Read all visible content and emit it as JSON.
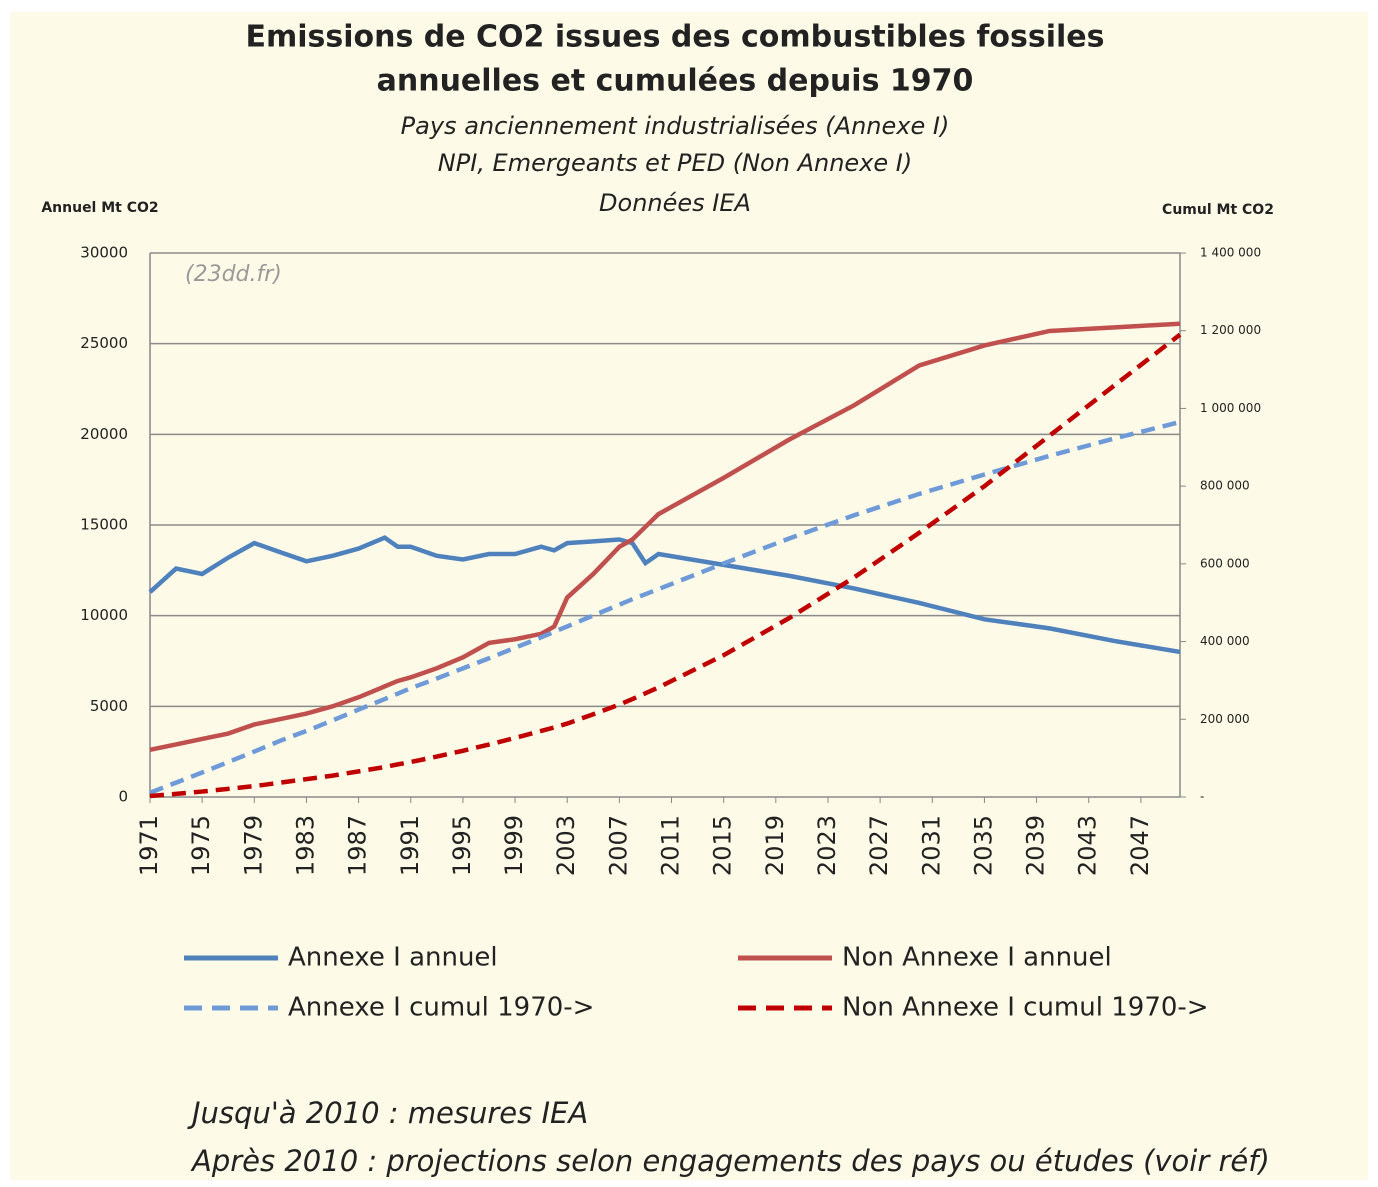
{
  "chart_data": {
    "type": "line",
    "title": [
      "Emissions de CO2 issues des combustibles fossiles",
      "annuelles et cumulées depuis 1970"
    ],
    "subtitle": [
      "Pays anciennement industrialisées (Annexe I)",
      "NPI, Emergeants et PED (Non Annexe I)",
      "Données IEA"
    ],
    "y_label": "Annuel  Mt CO2",
    "y2_label": "Cumul Mt CO2",
    "annotation": "(23dd.fr)",
    "notes": [
      "Jusqu'à 2010 : mesures IEA",
      "Après 2010  : projections selon engagements des pays ou études (voir réf)"
    ],
    "x": [
      1971,
      1973,
      1975,
      1977,
      1979,
      1981,
      1983,
      1985,
      1987,
      1989,
      1990,
      1991,
      1993,
      1995,
      1997,
      1999,
      2001,
      2002,
      2003,
      2005,
      2007,
      2008,
      2009,
      2010,
      2015,
      2020,
      2025,
      2030,
      2035,
      2040,
      2045,
      2050
    ],
    "xlim": [
      1971,
      2050
    ],
    "xticks": [
      1971,
      1975,
      1979,
      1983,
      1987,
      1991,
      1995,
      1999,
      2003,
      2007,
      2011,
      2015,
      2019,
      2023,
      2027,
      2031,
      2035,
      2039,
      2043,
      2047
    ],
    "ylim": [
      0,
      30000
    ],
    "yticks": [
      0,
      5000,
      10000,
      15000,
      20000,
      25000,
      30000
    ],
    "y2lim": [
      0,
      1400000
    ],
    "y2ticks": [
      {
        "value": 0,
        "label": "-"
      },
      {
        "value": 200000,
        "label": "200 000"
      },
      {
        "value": 400000,
        "label": "400 000"
      },
      {
        "value": 600000,
        "label": "600 000"
      },
      {
        "value": 800000,
        "label": "800 000"
      },
      {
        "value": 1000000,
        "label": "1 000 000"
      },
      {
        "value": 1200000,
        "label": "1 200 000"
      },
      {
        "value": 1400000,
        "label": "1 400 000"
      }
    ],
    "grid": true,
    "series": [
      {
        "name": "Annexe I annuel",
        "color": "#4f81bd",
        "style": "solid",
        "values": [
          11300,
          12600,
          12300,
          13200,
          14000,
          13500,
          13000,
          13300,
          13700,
          14300,
          13800,
          13800,
          13300,
          13100,
          13400,
          13400,
          13800,
          13600,
          14000,
          14100,
          14200,
          14000,
          12900,
          13400,
          12800,
          12200,
          11500,
          10700,
          9800,
          9300,
          8600,
          8000
        ]
      },
      {
        "name": "Non Annexe I annuel",
        "color": "#c0504d",
        "style": "solid",
        "values": [
          2600,
          2900,
          3200,
          3500,
          4000,
          4300,
          4600,
          5000,
          5500,
          6100,
          6400,
          6600,
          7100,
          7700,
          8500,
          8700,
          9000,
          9400,
          11000,
          12300,
          13800,
          14200,
          14900,
          15600,
          17600,
          19700,
          21600,
          23800,
          24900,
          25700,
          25900,
          26100
        ]
      },
      {
        "name": "Annexe I cumul 1970->",
        "color": "#6f9ad8",
        "style": "dashed",
        "axis": "y2",
        "values": [
          11000,
          37000,
          63000,
          90000,
          117000,
          145000,
          170000,
          197000,
          225000,
          252000,
          266000,
          280000,
          305000,
          331000,
          357000,
          384000,
          411000,
          425000,
          439000,
          467000,
          495000,
          509000,
          522000,
          535000,
          601000,
          665000,
          725000,
          780000,
          830000,
          878000,
          923000,
          965000
        ]
      },
      {
        "name": "Non Annexe I cumul 1970->",
        "color": "#c00000",
        "style": "dashed",
        "axis": "y2",
        "values": [
          2600,
          8000,
          14000,
          21000,
          28000,
          37000,
          46000,
          55000,
          66000,
          77000,
          84000,
          90000,
          104000,
          119000,
          135000,
          152000,
          170000,
          179000,
          189000,
          213000,
          238000,
          252000,
          267000,
          282000,
          365000,
          460000,
          565000,
          680000,
          800000,
          930000,
          1060000,
          1190000
        ]
      }
    ]
  }
}
